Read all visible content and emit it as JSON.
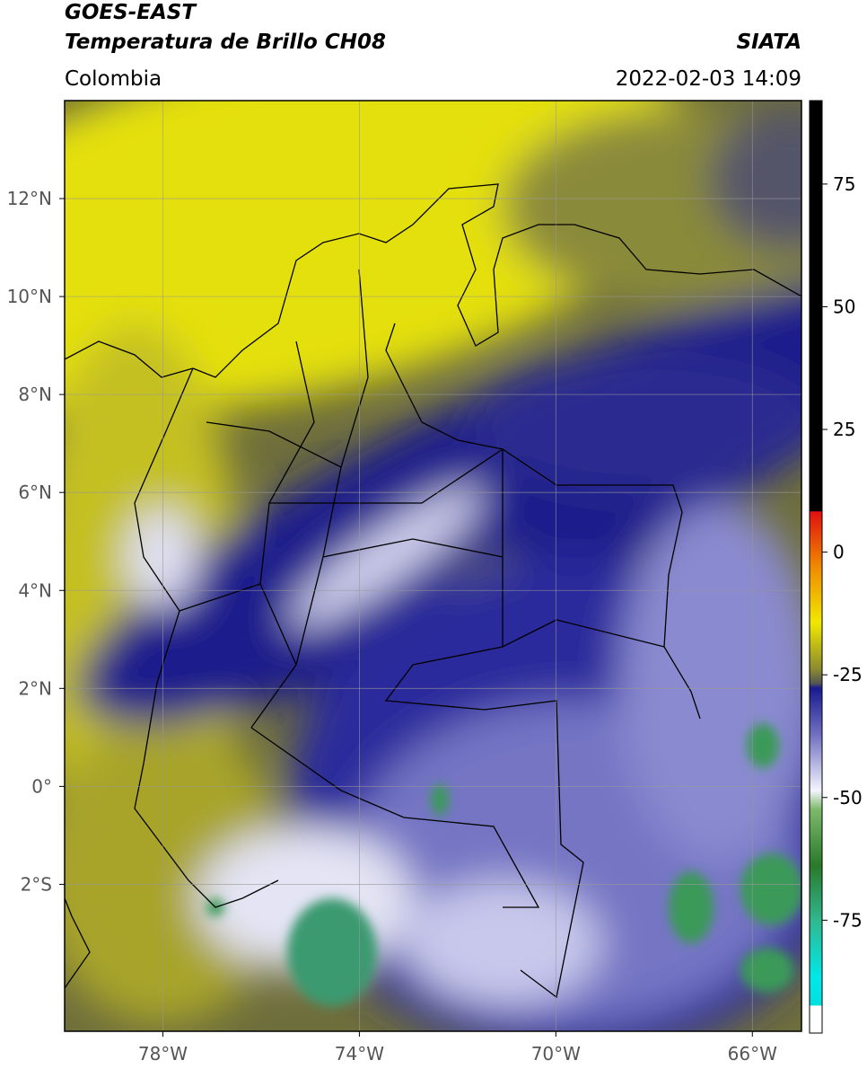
{
  "header": {
    "title": "GOES-EAST",
    "subtitle": "Temperatura de Brillo CH08",
    "source": "SIATA",
    "region": "Colombia",
    "datetime": "2022-02-03 14:09"
  },
  "map": {
    "xlim": [
      -80,
      -65
    ],
    "ylim": [
      -5,
      14
    ],
    "xticks": [
      {
        "value": -78,
        "label": "78°W"
      },
      {
        "value": -74,
        "label": "74°W"
      },
      {
        "value": -70,
        "label": "70°W"
      },
      {
        "value": -66,
        "label": "66°W"
      }
    ],
    "yticks": [
      {
        "value": 12,
        "label": "12°N"
      },
      {
        "value": 10,
        "label": "10°N"
      },
      {
        "value": 8,
        "label": "8°N"
      },
      {
        "value": 6,
        "label": "6°N"
      },
      {
        "value": 4,
        "label": "4°N"
      },
      {
        "value": 2,
        "label": "2°N"
      },
      {
        "value": 0,
        "label": "0°"
      },
      {
        "value": -2,
        "label": "2°S"
      }
    ],
    "grid": true
  },
  "colorbar": {
    "lim": [
      -98,
      92
    ],
    "ticks": [
      75,
      50,
      25,
      0,
      -25,
      -50,
      -75
    ]
  }
}
